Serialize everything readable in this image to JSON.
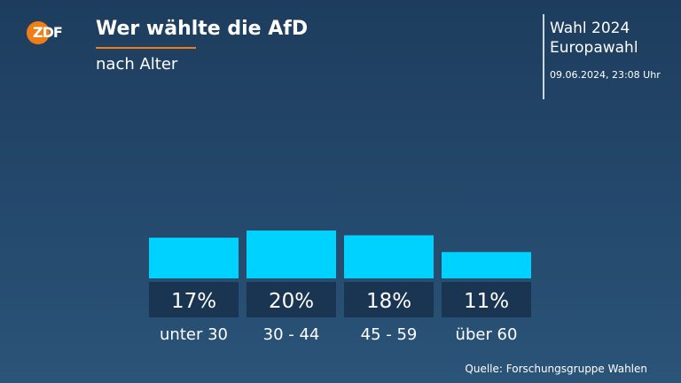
{
  "header": {
    "logo_text": "ZDF",
    "title": "Wer wählte die AfD",
    "subtitle": "nach Alter"
  },
  "info": {
    "line1": "Wahl 2024",
    "line2": "Europawahl",
    "date": "09.06.2024, 23:08 Uhr"
  },
  "source": "Quelle: Forschungsgruppe Wahlen",
  "colors": {
    "accent": "#f07e16",
    "bar": "#00d2ff",
    "label_box": "#1a3552"
  },
  "icons": {
    "logo": "zdf-logo-icon"
  },
  "chart_data": {
    "type": "bar",
    "categories": [
      "unter 30",
      "30 - 44",
      "45 - 59",
      "über 60"
    ],
    "values": [
      17,
      20,
      18,
      11
    ],
    "value_labels": [
      "17%",
      "20%",
      "18%",
      "11%"
    ],
    "unit": "%",
    "title": "Wer wählte die AfD",
    "subtitle": "nach Alter",
    "grid": false
  }
}
